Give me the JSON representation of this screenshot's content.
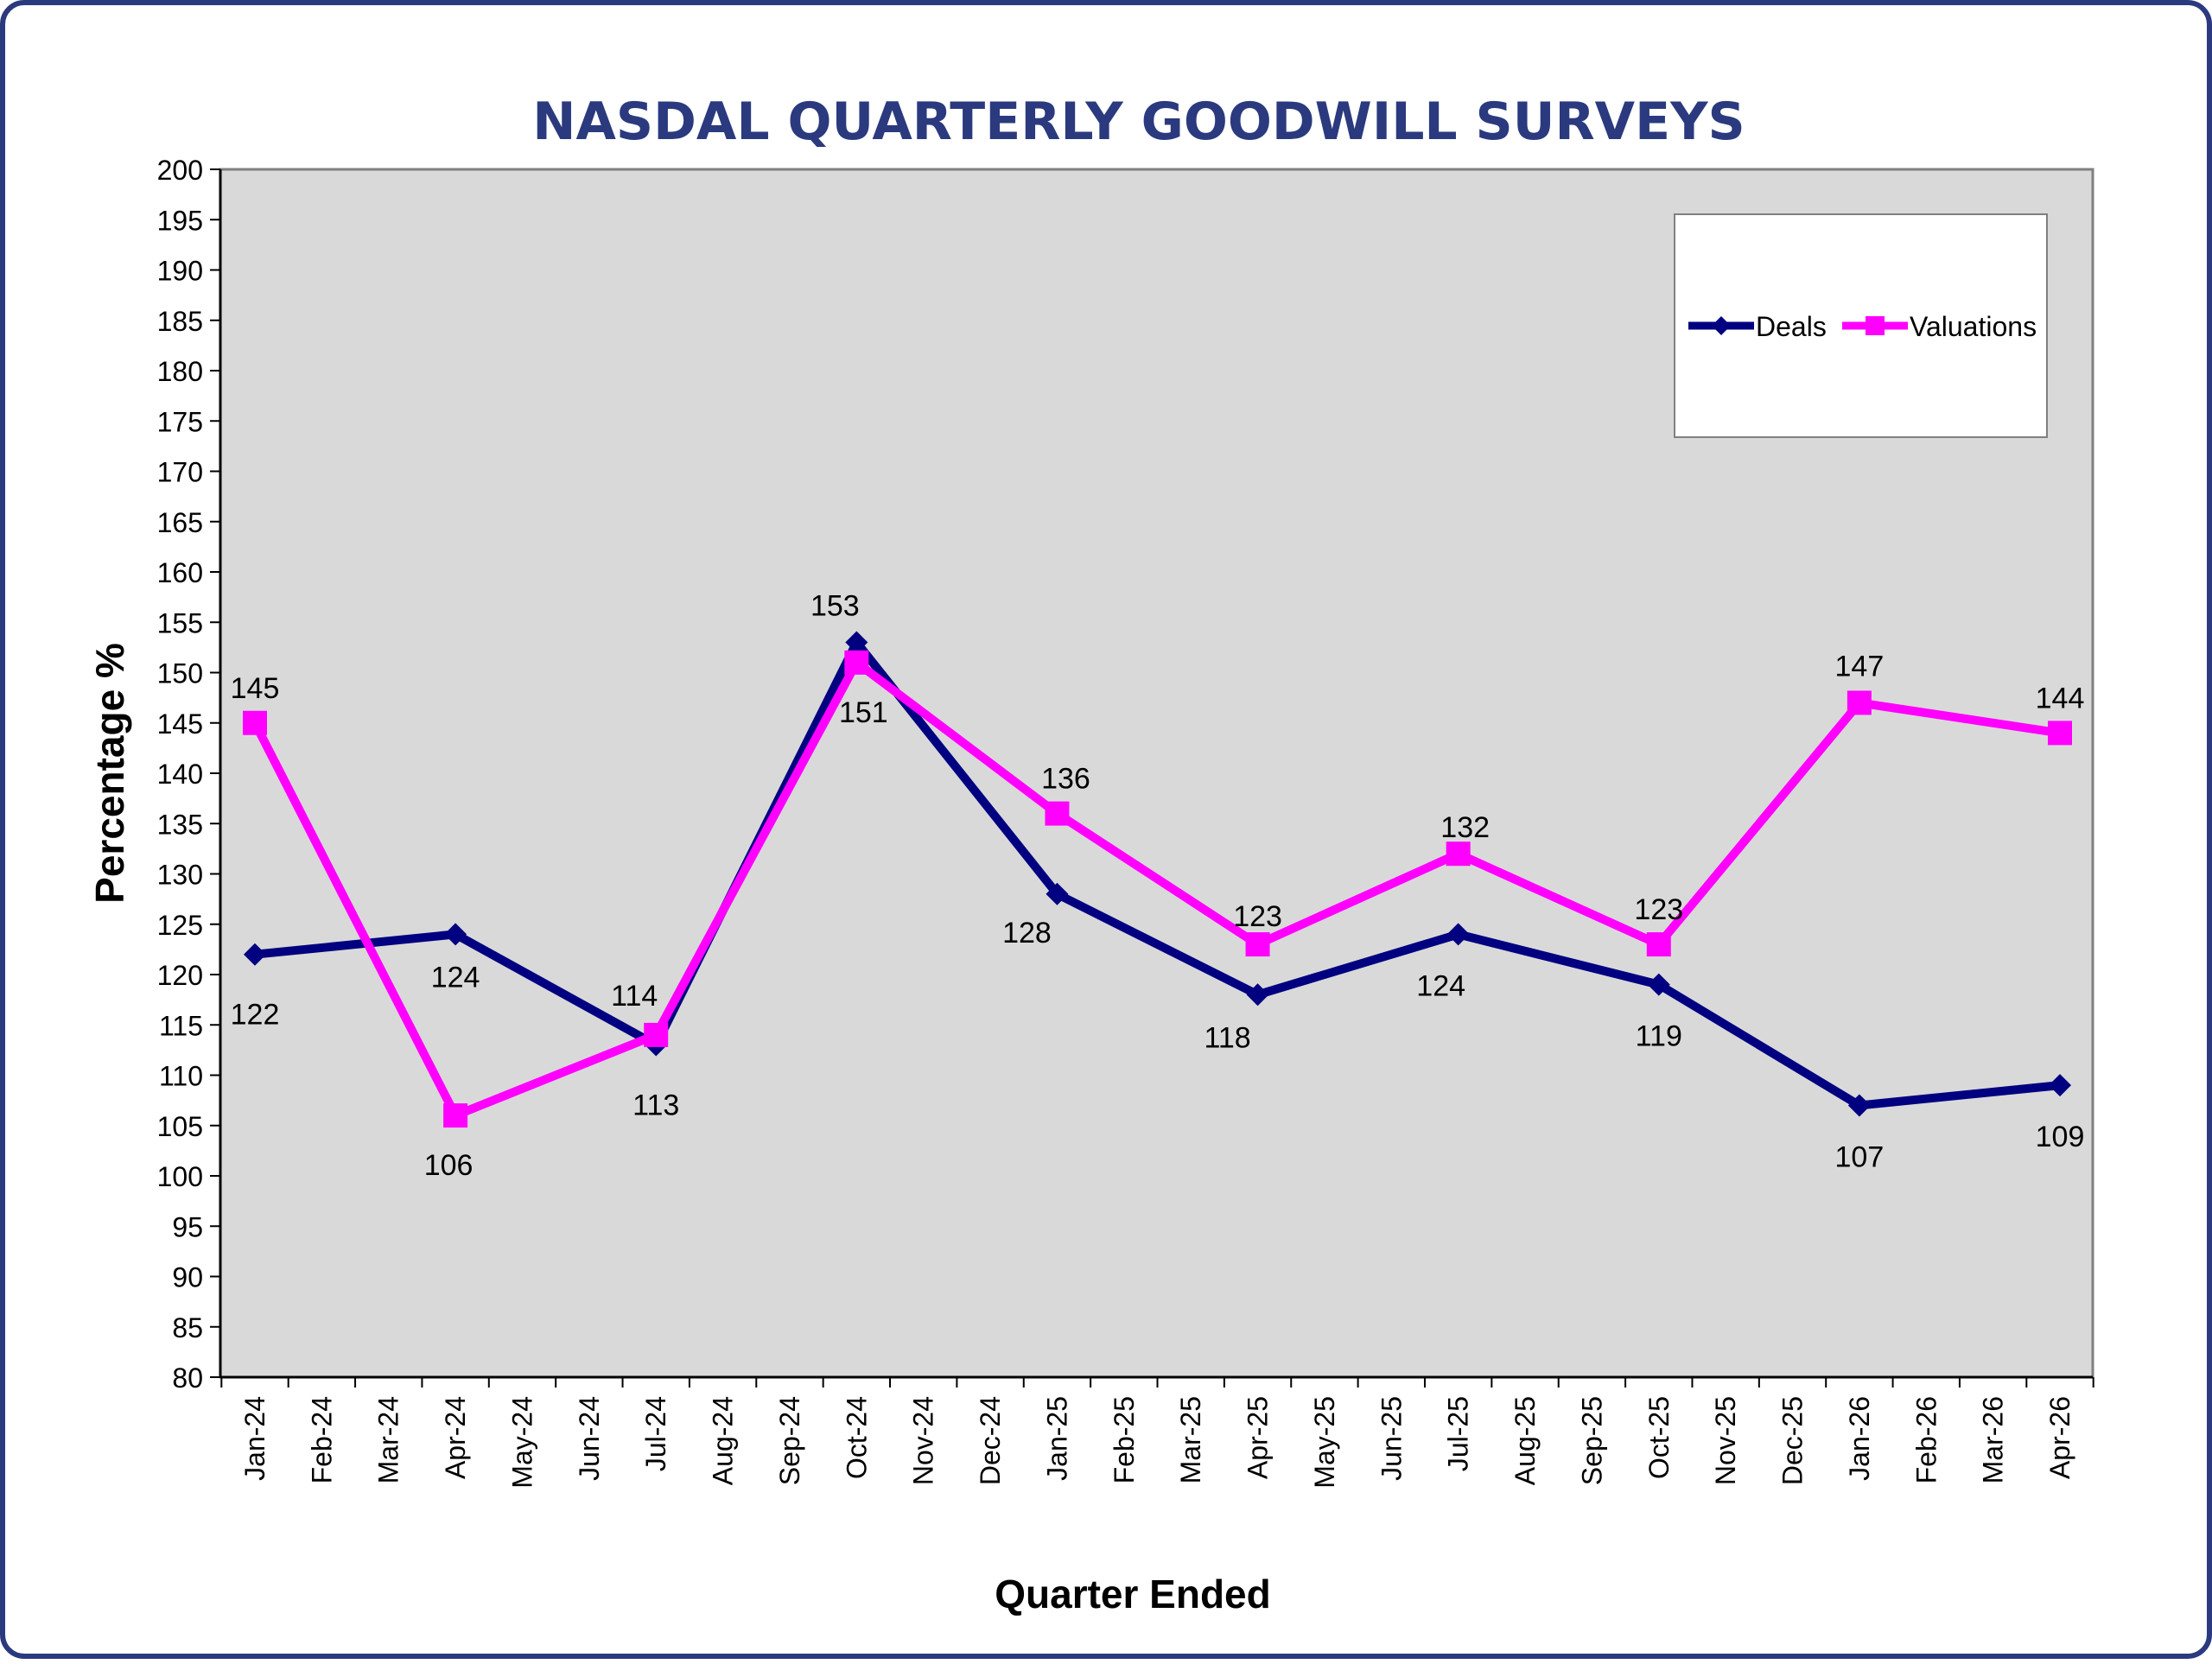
{
  "chart_data": {
    "type": "line",
    "title": "NASDAL QUARTERLY GOODWILL SURVEYS",
    "xlabel": "Quarter Ended",
    "ylabel": "Percentage %",
    "ylim": [
      80,
      200
    ],
    "ytick_step": 5,
    "grid": false,
    "legend_position": "top-right",
    "plot_background": "#d9d9d9",
    "categories": [
      "Jan-24",
      "Feb-24",
      "Mar-24",
      "Apr-24",
      "May-24",
      "Jun-24",
      "Jul-24",
      "Aug-24",
      "Sep-24",
      "Oct-24",
      "Nov-24",
      "Dec-24",
      "Jan-25",
      "Feb-25",
      "Mar-25",
      "Apr-25",
      "May-25",
      "Jun-25",
      "Jul-25",
      "Aug-25",
      "Sep-25",
      "Oct-25",
      "Nov-25",
      "Dec-25",
      "Jan-26",
      "Feb-26",
      "Mar-26",
      "Apr-26"
    ],
    "series": [
      {
        "name": "Deals",
        "color": "#000080",
        "marker": "diamond",
        "x": [
          "Jan-24",
          "Apr-24",
          "Jul-24",
          "Oct-24",
          "Jan-25",
          "Apr-25",
          "Jul-25",
          "Oct-25",
          "Jan-26",
          "Apr-26"
        ],
        "values": [
          122,
          124,
          113,
          153,
          128,
          118,
          124,
          119,
          107,
          109
        ],
        "labels": [
          "122",
          "124",
          "113",
          "153",
          "128",
          "118",
          "124",
          "119",
          "107",
          "109"
        ]
      },
      {
        "name": "Valuations",
        "color": "#ff00ff",
        "marker": "square",
        "x": [
          "Jan-24",
          "Apr-24",
          "Jul-24",
          "Oct-24",
          "Jan-25",
          "Apr-25",
          "Jul-25",
          "Oct-25",
          "Jan-26",
          "Apr-26"
        ],
        "values": [
          145,
          106,
          114,
          151,
          136,
          123,
          132,
          123,
          147,
          144
        ],
        "labels": [
          "145",
          "106",
          "114",
          "151",
          "136",
          "123",
          "132",
          "123",
          "147",
          "144"
        ]
      }
    ]
  }
}
